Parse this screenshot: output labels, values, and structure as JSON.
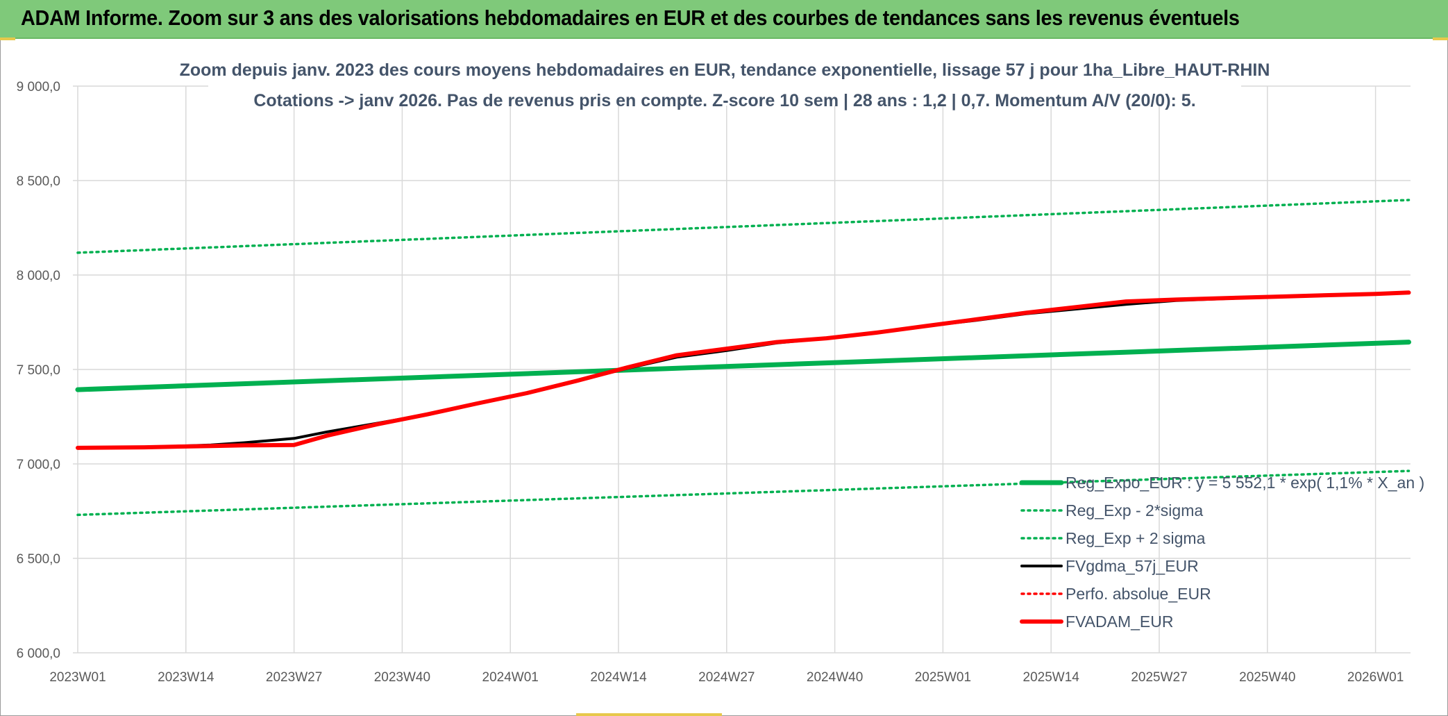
{
  "banner": {
    "title": "ADAM Informe. Zoom sur 3 ans des valorisations hebdomadaires en EUR et des courbes de tendances sans les revenus éventuels"
  },
  "colors": {
    "banner_bg": "#7fc97a",
    "trend_green": "#00b050",
    "fv_black": "#000000",
    "fvadam_red": "#ff0000",
    "grid": "#d9d9d9"
  },
  "chart_data": {
    "type": "line",
    "title_line1": "Zoom depuis janv. 2023 des cours moyens hebdomadaires en EUR, tendance exponentielle, lissage 57 j pour 1ha_Libre_HAUT-RHIN",
    "title_line2": "Cotations -> janv 2026. Pas de revenus pris en compte. Z-score 10 sem | 28 ans : 1,2 | 0,7. Momentum A/V (20/0): 5.",
    "x_tick_labels": [
      "2023W01",
      "2023W14",
      "2023W27",
      "2023W40",
      "2024W01",
      "2024W14",
      "2024W27",
      "2024W40",
      "2025W01",
      "2025W14",
      "2025W27",
      "2025W40",
      "2026W01"
    ],
    "x_range_weeks": [
      0,
      160
    ],
    "y_tick_labels": [
      "9 000,0",
      "8 500,0",
      "8 000,0",
      "7 500,0",
      "7 000,0",
      "6 500,0",
      "6 000,0"
    ],
    "y_ticks": [
      9000,
      8500,
      8000,
      7500,
      7000,
      6500,
      6000
    ],
    "ylim": [
      6000,
      9000
    ],
    "grid": true,
    "legend_position": "bottom-right",
    "series": [
      {
        "name": "Reg_Expo_EUR : y = 5 552,1 * exp( 1,1% *  X_an )",
        "style": "solid-thick",
        "color": "#00b050",
        "x": [
          0,
          160
        ],
        "y": [
          7393,
          7645
        ]
      },
      {
        "name": "Reg_Exp - 2*sigma",
        "style": "dotted",
        "color": "#00b050",
        "x": [
          0,
          160
        ],
        "y": [
          6730,
          6963
        ]
      },
      {
        "name": "Reg_Exp + 2 sigma",
        "style": "dotted",
        "color": "#00b050",
        "x": [
          0,
          160
        ],
        "y": [
          8118,
          8397
        ]
      },
      {
        "name": "FVgdma_57j_EUR",
        "style": "solid",
        "color": "#000000",
        "x": [
          0,
          8,
          16,
          20,
          26,
          30,
          36,
          42,
          48,
          54,
          60,
          66,
          72,
          78,
          84,
          90,
          96,
          102,
          108,
          114,
          120,
          126,
          132,
          138,
          144,
          150,
          156,
          160
        ],
        "y": [
          7085,
          7088,
          7100,
          7112,
          7135,
          7170,
          7215,
          7262,
          7320,
          7375,
          7440,
          7505,
          7565,
          7600,
          7640,
          7665,
          7695,
          7730,
          7760,
          7795,
          7820,
          7845,
          7865,
          7875,
          7885,
          7893,
          7900,
          7905
        ]
      },
      {
        "name": "Perfo. absolue_EUR",
        "style": "dotted",
        "color": "#ff0000",
        "x": [],
        "y": []
      },
      {
        "name": "FVADAM_EUR",
        "style": "solid-thick",
        "color": "#ff0000",
        "x": [
          0,
          8,
          16,
          20,
          26,
          30,
          36,
          42,
          48,
          54,
          60,
          66,
          72,
          78,
          84,
          90,
          96,
          102,
          108,
          114,
          120,
          126,
          132,
          138,
          144,
          150,
          156,
          160
        ],
        "y": [
          7085,
          7088,
          7095,
          7098,
          7100,
          7150,
          7210,
          7262,
          7320,
          7375,
          7440,
          7510,
          7575,
          7610,
          7645,
          7665,
          7695,
          7730,
          7765,
          7800,
          7830,
          7860,
          7870,
          7878,
          7885,
          7893,
          7900,
          7907
        ]
      }
    ]
  }
}
